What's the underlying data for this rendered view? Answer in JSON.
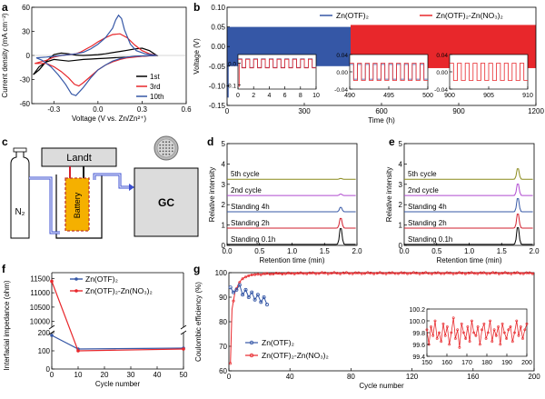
{
  "chart_data": [
    {
      "panel": "a",
      "type": "line",
      "xlabel": "Voltage (V vs. Zn/Zn²⁺)",
      "ylabel": "Current density (mA cm⁻²)",
      "xlim": [
        -0.45,
        0.6
      ],
      "ylim": [
        -60,
        60
      ],
      "xticks": [
        -0.3,
        0.0,
        0.3,
        0.6
      ],
      "xtick_labels": [
        "-0.3",
        "0.0",
        "0.3",
        "0.6"
      ],
      "yticks": [
        -60,
        -30,
        0,
        30,
        60
      ],
      "ytick_labels": [
        "-60",
        "-30",
        "0",
        "30",
        "60"
      ],
      "legend_position": "lower-right",
      "series": [
        {
          "name": "1st",
          "color": "#000000",
          "x": [
            -0.44,
            -0.4,
            -0.35,
            -0.3,
            -0.25,
            -0.2,
            -0.15,
            -0.1,
            -0.05,
            0.0,
            0.05,
            0.1,
            0.15,
            0.2,
            0.25,
            0.3,
            0.35,
            0.4,
            0.35,
            0.3,
            0.25,
            0.2,
            0.15,
            0.1,
            0.05,
            0.0,
            -0.05,
            -0.1,
            -0.15,
            -0.2,
            -0.25,
            -0.3,
            -0.35,
            -0.4,
            -0.44
          ],
          "y": [
            -24,
            -18,
            -7,
            1,
            3,
            2,
            0.5,
            0,
            0.5,
            1,
            2,
            3.5,
            5,
            6.5,
            8,
            9,
            6,
            0,
            -0.5,
            -1,
            -1.5,
            -2,
            -2.5,
            -3,
            -3.5,
            -4,
            -4.5,
            -5,
            -6,
            -7,
            -6,
            -5,
            -8,
            -14,
            -24
          ]
        },
        {
          "name": "3rd",
          "color": "#e8272b",
          "x": [
            -0.43,
            -0.35,
            -0.3,
            -0.25,
            -0.2,
            -0.15,
            -0.12,
            -0.08,
            -0.04,
            0.0,
            0.05,
            0.1,
            0.15,
            0.2,
            0.25,
            0.3,
            0.35,
            0.4,
            0.35,
            0.3,
            0.25,
            0.2,
            0.15,
            0.1,
            0.05,
            0.0,
            -0.05,
            -0.1,
            -0.13,
            -0.16,
            -0.2,
            -0.25,
            -0.3,
            -0.35,
            -0.43
          ],
          "y": [
            -10,
            -6,
            -2,
            0,
            1,
            2,
            4,
            8,
            12,
            17,
            22,
            26,
            27,
            22,
            13,
            6,
            2,
            0,
            -0.5,
            -1,
            -2,
            -3,
            -5,
            -8,
            -12,
            -18,
            -26,
            -34,
            -38,
            -36,
            -28,
            -20,
            -14,
            -10,
            -10
          ]
        },
        {
          "name": "10th",
          "color": "#3557a6",
          "x": [
            -0.42,
            -0.35,
            -0.3,
            -0.25,
            -0.2,
            -0.15,
            -0.1,
            -0.05,
            0.0,
            0.05,
            0.1,
            0.12,
            0.14,
            0.16,
            0.18,
            0.22,
            0.26,
            0.32,
            0.4,
            0.32,
            0.25,
            0.2,
            0.15,
            0.1,
            0.05,
            0.0,
            -0.05,
            -0.1,
            -0.15,
            -0.18,
            -0.22,
            -0.27,
            -0.32,
            -0.38,
            -0.42
          ],
          "y": [
            -3,
            -2,
            -1,
            0,
            1,
            2,
            4,
            8,
            14,
            22,
            34,
            44,
            50,
            46,
            32,
            14,
            6,
            2,
            0,
            -0.5,
            -1,
            -2,
            -4,
            -7,
            -12,
            -18,
            -28,
            -40,
            -50,
            -48,
            -36,
            -24,
            -14,
            -6,
            -3
          ]
        }
      ]
    },
    {
      "panel": "b",
      "type": "line",
      "xlabel": "Time (h)",
      "ylabel": "Voltage (V)",
      "xlim": [
        0,
        1200
      ],
      "ylim": [
        -0.15,
        0.1
      ],
      "xticks": [
        0,
        300,
        600,
        900,
        1200
      ],
      "xtick_labels": [
        "0",
        "300",
        "600",
        "900",
        "1200"
      ],
      "yticks": [
        -0.15,
        -0.1,
        -0.05,
        0.0,
        0.05,
        0.1
      ],
      "ytick_labels": [
        "-0.15",
        "-0.10",
        "-0.05",
        "0.00",
        "0.05",
        "0.10"
      ],
      "series": [
        {
          "name": "Zn(OTF)₂",
          "color": "#3557a6",
          "x": [
            0,
            480
          ],
          "y_upper": [
            0.05,
            0.05
          ],
          "y_lower": [
            -0.05,
            -0.05
          ],
          "y_spike": -0.13
        },
        {
          "name": "Zn(OTF)₂-Zn(NO₃)₂",
          "color": "#e8272b",
          "x": [
            480,
            1200
          ],
          "y_upper": [
            0.055,
            0.055
          ],
          "y_lower": [
            -0.055,
            -0.055
          ]
        }
      ],
      "insets": [
        {
          "xlim": [
            0,
            10
          ],
          "xticks": [
            0,
            2,
            4,
            6,
            8,
            10
          ],
          "ylim": [
            -0.12,
            0.04
          ],
          "yticks": [
            -0.1,
            0.0
          ],
          "ytick_labels": [
            "-0.1",
            "0.0"
          ]
        },
        {
          "xlim": [
            490,
            500
          ],
          "xticks": [
            490,
            495,
            500
          ],
          "ylim": [
            -0.04,
            0.04
          ],
          "yticks": [
            -0.04,
            0.0,
            0.04
          ],
          "ytick_labels": [
            "-0.04",
            "0.00",
            "0.04"
          ]
        },
        {
          "xlim": [
            900,
            910
          ],
          "xticks": [
            900,
            905,
            910
          ],
          "ylim": [
            -0.04,
            0.04
          ],
          "yticks": [
            -0.04,
            0.0,
            0.04
          ],
          "ytick_labels": [
            "-0.04",
            "0.00",
            "0.04"
          ]
        }
      ]
    },
    {
      "panel": "d",
      "type": "line",
      "xlabel": "Retention time (min)",
      "ylabel": "Relative intensity",
      "xlim": [
        0,
        2.0
      ],
      "ylim": [
        0,
        5
      ],
      "xticks": [
        0.0,
        0.5,
        1.0,
        1.5,
        2.0
      ],
      "xtick_labels": [
        "0.0",
        "0.5",
        "1.0",
        "1.5",
        "2.0"
      ],
      "yticks": [
        0,
        1,
        2,
        3,
        4,
        5
      ],
      "traces": [
        {
          "label": "Standing 0.1h",
          "color": "#000000",
          "offset": 0,
          "peak_x": 1.75,
          "peak_height": 0.9
        },
        {
          "label": "Standing 2h",
          "color": "#d21f2e",
          "offset": 0.8,
          "peak_x": 1.75,
          "peak_height": 0.55
        },
        {
          "label": "Standing 4h",
          "color": "#3557a6",
          "offset": 1.6,
          "peak_x": 1.75,
          "peak_height": 0.25
        },
        {
          "label": "2nd cycle",
          "color": "#b04ad0",
          "offset": 2.4,
          "peak_x": 1.75,
          "peak_height": 0.08
        },
        {
          "label": "5th cycle",
          "color": "#8a8a1a",
          "offset": 3.2,
          "peak_x": 1.75,
          "peak_height": 0.04
        }
      ]
    },
    {
      "panel": "e",
      "type": "line",
      "xlabel": "Retention time (min)",
      "ylabel": "Relative intensity",
      "xlim": [
        0,
        2.0
      ],
      "ylim": [
        0,
        5
      ],
      "xticks": [
        0.0,
        0.5,
        1.0,
        1.5,
        2.0
      ],
      "xtick_labels": [
        "0.0",
        "0.5",
        "1.0",
        "1.5",
        "2.0"
      ],
      "yticks": [
        0,
        1,
        2,
        3,
        4,
        5
      ],
      "traces": [
        {
          "label": "Standing 0.1h",
          "color": "#000000",
          "offset": 0,
          "peak_x": 1.75,
          "peak_height": 0.95
        },
        {
          "label": "Standing 2h",
          "color": "#d21f2e",
          "offset": 0.8,
          "peak_x": 1.75,
          "peak_height": 0.8
        },
        {
          "label": "Standing 4h",
          "color": "#3557a6",
          "offset": 1.6,
          "peak_x": 1.75,
          "peak_height": 0.75
        },
        {
          "label": "2nd cycle",
          "color": "#b04ad0",
          "offset": 2.4,
          "peak_x": 1.75,
          "peak_height": 0.65
        },
        {
          "label": "5th cycle",
          "color": "#8a8a1a",
          "offset": 3.2,
          "peak_x": 1.75,
          "peak_height": 0.6
        }
      ]
    },
    {
      "panel": "f",
      "type": "line",
      "xlabel": "Cycle number",
      "ylabel": "Interfacial impedance (ohm)",
      "xlim": [
        0,
        50
      ],
      "xticks": [
        0,
        10,
        20,
        30,
        40,
        50
      ],
      "xtick_labels": [
        "0",
        "10",
        "20",
        "30",
        "40",
        "50"
      ],
      "ytick_labels": [
        "0",
        "100",
        "200",
        "10000",
        "10500",
        "11000",
        "11500"
      ],
      "axis_break": true,
      "legend_position": "top-right",
      "series": [
        {
          "name": "Zn(OTF)₂",
          "color": "#3557a6",
          "x": [
            0,
            10,
            50
          ],
          "y": [
            2900,
            110,
            115
          ]
        },
        {
          "name": "Zn(OTF)₂-Zn(NO₃)₂",
          "color": "#e8272b",
          "x": [
            0,
            10,
            50
          ],
          "y": [
            11400,
            100,
            110
          ]
        }
      ]
    },
    {
      "panel": "g",
      "type": "scatter",
      "xlabel": "Cycle number",
      "ylabel": "Coulombic efficiency (%)",
      "xlim": [
        0,
        200
      ],
      "ylim": [
        60,
        100
      ],
      "xticks": [
        0,
        40,
        80,
        120,
        160,
        200
      ],
      "yticks": [
        60,
        70,
        80,
        90,
        100
      ],
      "legend_position": "lower-left",
      "series": [
        {
          "name": "Zn(OTF)₂",
          "color": "#3557a6",
          "x": [
            1,
            3,
            5,
            7,
            9,
            11,
            13,
            15,
            17,
            19,
            21,
            23,
            25
          ],
          "y": [
            94,
            92,
            93,
            95,
            91,
            93,
            90,
            92,
            89,
            91,
            88,
            90,
            87
          ]
        },
        {
          "name": "Zn(OTF)₂-Zn(NO₃)₂",
          "color": "#e8272b",
          "x": [
            1,
            2,
            4,
            6,
            8,
            10,
            14,
            18,
            24,
            30,
            40,
            60,
            80,
            100,
            120,
            140,
            160,
            180,
            200
          ],
          "y": [
            63,
            85,
            92,
            95,
            97,
            98,
            99,
            99.3,
            99.5,
            99.6,
            99.7,
            99.8,
            99.8,
            99.8,
            99.8,
            99.8,
            99.8,
            99.8,
            99.8
          ]
        }
      ],
      "inset": {
        "xlim": [
          150,
          200
        ],
        "ylim": [
          99.4,
          100.2
        ],
        "xticks": [
          150,
          160,
          170,
          180,
          190,
          200
        ],
        "yticks": [
          99.4,
          99.6,
          99.8,
          100.0,
          100.2
        ],
        "ytick_labels": [
          "99.4",
          "99.6",
          "99.8",
          "100.0",
          "100.2"
        ],
        "values": [
          99.85,
          99.6,
          99.9,
          99.75,
          100.0,
          99.7,
          99.8,
          99.65,
          99.95,
          99.75,
          99.9,
          99.6,
          99.8,
          100.05,
          99.7,
          99.85,
          99.55,
          99.95,
          99.8,
          99.7,
          99.9,
          99.65,
          100.0,
          99.8,
          99.75,
          99.9,
          99.6,
          99.85,
          99.95,
          99.7,
          99.8,
          100.0,
          99.65,
          99.85,
          99.75,
          99.9,
          99.6,
          99.95,
          99.8,
          99.7,
          99.85,
          99.9,
          99.65,
          99.8,
          100.0,
          99.75,
          99.9,
          99.7,
          99.85,
          99.95
        ]
      }
    }
  ],
  "panel_letters": {
    "a": "a",
    "b": "b",
    "c": "c",
    "d": "d",
    "e": "e",
    "f": "f",
    "g": "g"
  },
  "diagram_c": {
    "landt_label": "Landt",
    "n2_label": "N₂",
    "battery_label": "Battery",
    "gc_label": "GC"
  },
  "colors": {
    "blue": "#3557a6",
    "red": "#e8272b",
    "gas_line": "#3b4fd0"
  }
}
